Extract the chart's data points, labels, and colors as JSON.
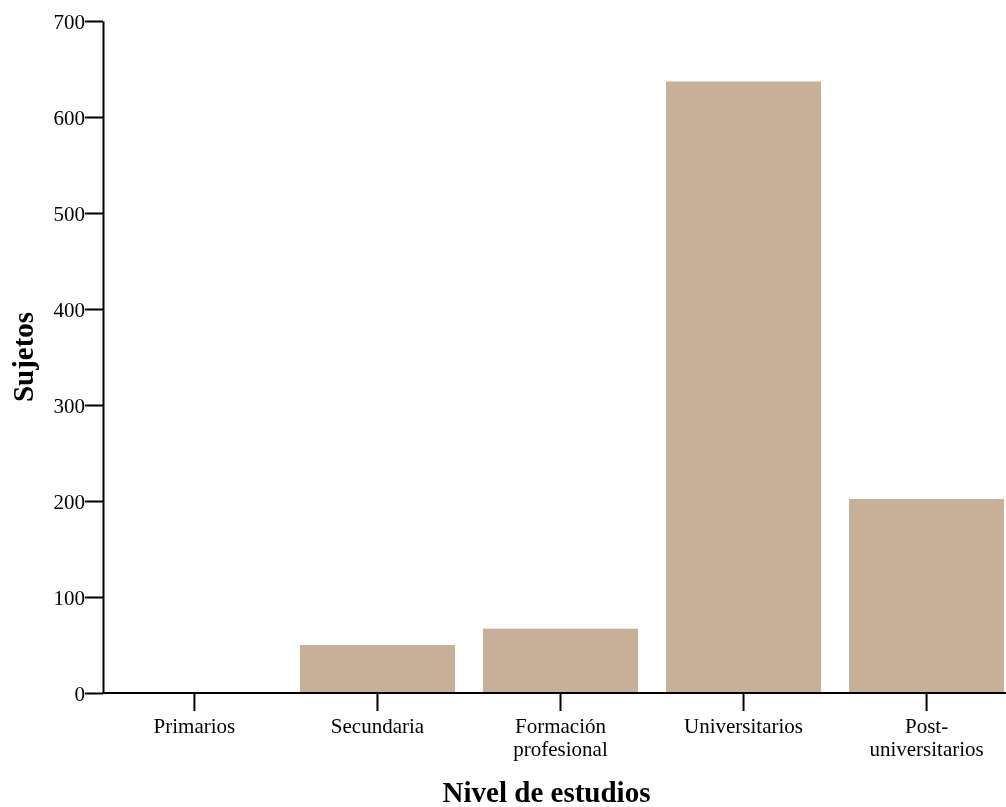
{
  "chart_data": {
    "type": "bar",
    "xlabel": "Nivel de estudios",
    "ylabel": "Sujetos",
    "categories": [
      "Primarios",
      "Secundaria",
      "Formación profesional",
      "Universitarios",
      "Post-universitarios"
    ],
    "values": [
      0,
      50,
      67,
      637,
      202
    ],
    "color": "#c8b098",
    "ylim": [
      0,
      700
    ],
    "yticks": [
      0,
      100,
      200,
      300,
      400,
      500,
      600,
      700
    ],
    "grid": false
  }
}
